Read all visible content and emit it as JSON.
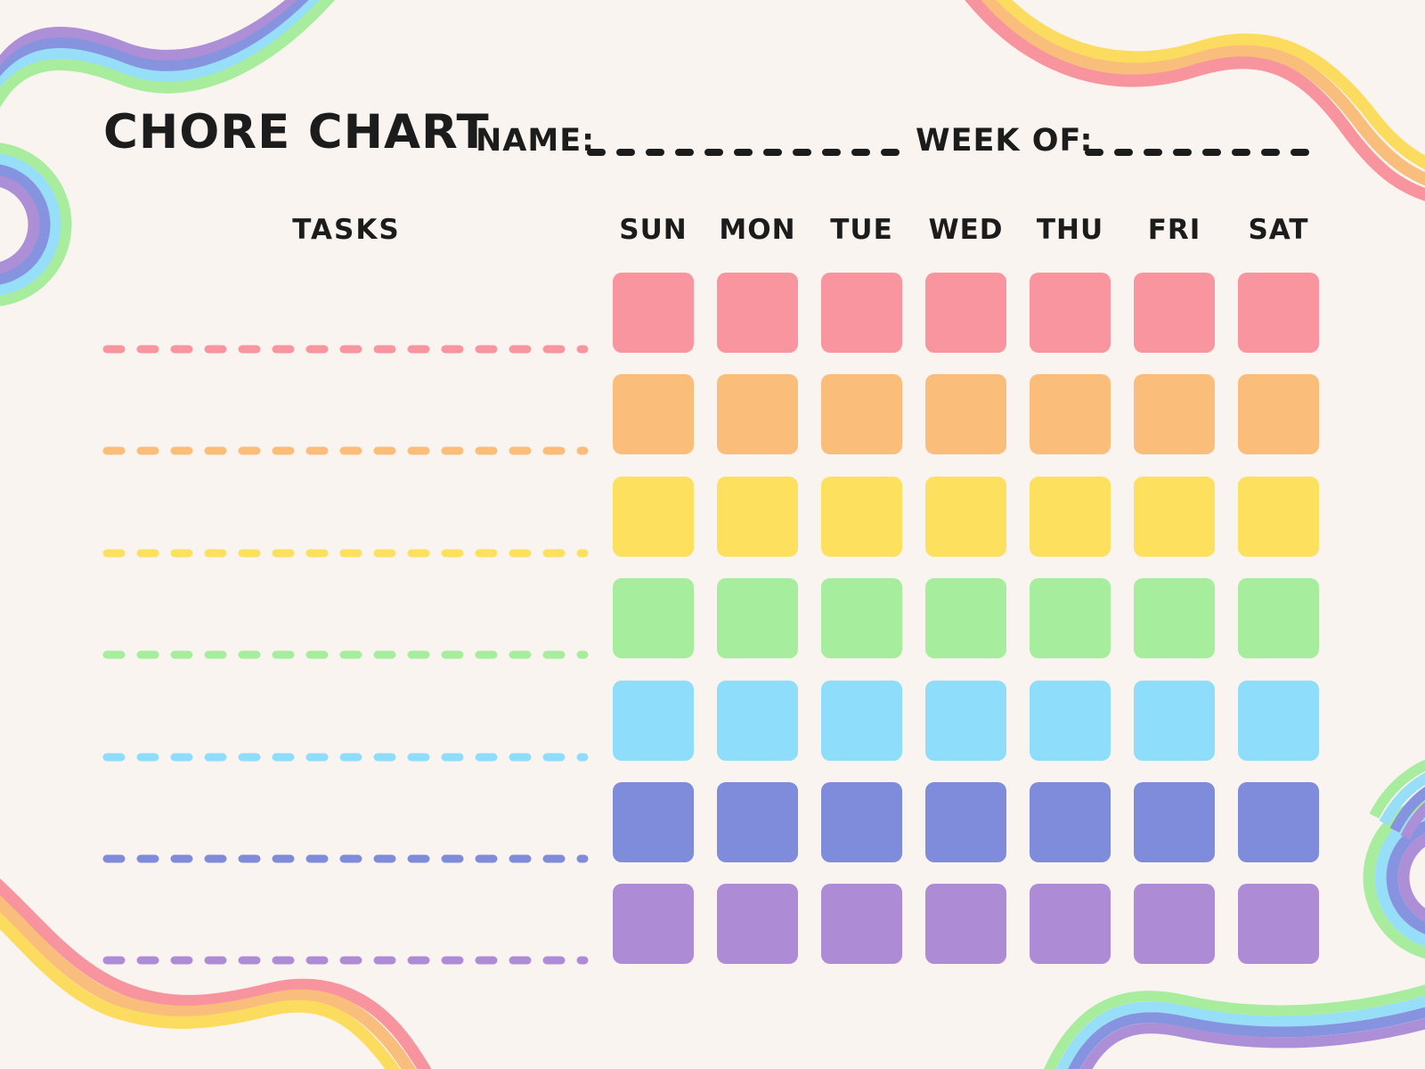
{
  "page": {
    "background": "#FAF4F1",
    "text_color": "#1C1C1C"
  },
  "header": {
    "title": "CHORE CHART",
    "name_label": "NAME:",
    "name_value": "",
    "week_label": "WEEK OF:",
    "week_value": ""
  },
  "table": {
    "tasks_label": "TASKS",
    "days": [
      "SUN",
      "MON",
      "TUE",
      "WED",
      "THU",
      "FRI",
      "SAT"
    ],
    "rows": [
      {
        "name": "row-pink",
        "color": "#F8959E",
        "task": ""
      },
      {
        "name": "row-orange",
        "color": "#FABD7A",
        "task": ""
      },
      {
        "name": "row-yellow",
        "color": "#FCE05E",
        "task": ""
      },
      {
        "name": "row-green",
        "color": "#A6ED9D",
        "task": ""
      },
      {
        "name": "row-sky-blue",
        "color": "#8EDDFA",
        "task": ""
      },
      {
        "name": "row-periwinkle",
        "color": "#7E8CDB",
        "task": ""
      },
      {
        "name": "row-purple",
        "color": "#AD8CD5",
        "task": ""
      }
    ]
  },
  "decorations": {
    "cool": {
      "purple": "#AC8FD6",
      "periwinkle": "#8694DF",
      "sky": "#97DEF9",
      "green": "#A8EC9D"
    },
    "warm": {
      "yellow": "#FBDC5F",
      "orange": "#F9BE7B",
      "pink": "#F8949D"
    },
    "blank_line_color": "#1C1C1C"
  }
}
